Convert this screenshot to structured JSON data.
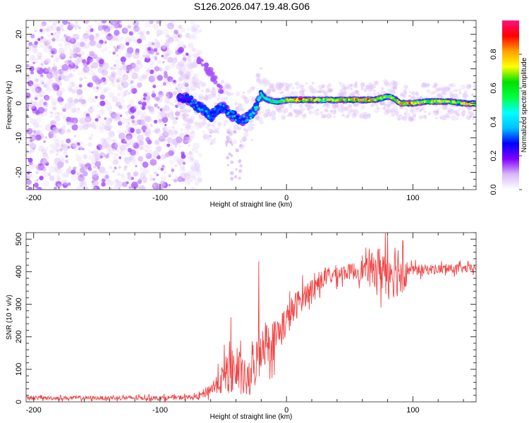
{
  "title": "S126.2026.047.19.48.G06",
  "chart_data": [
    {
      "type": "heatmap",
      "name": "spectrogram",
      "xlabel": "Height of straight line (km)",
      "ylabel": "Frequency (Hz)",
      "xlim": [
        -206,
        150
      ],
      "ylim": [
        -25,
        24
      ],
      "xticks": [
        -200,
        -100,
        0,
        100
      ],
      "xtick_labels": [
        "-200",
        "-100",
        "0",
        "100"
      ],
      "yticks": [
        -20,
        -10,
        0,
        10,
        20
      ],
      "ytick_labels": [
        "-20",
        "-10",
        "0",
        "10",
        "20"
      ],
      "colorbar": {
        "label": "Normalized spectral amplitude",
        "range": [
          0,
          1
        ],
        "ticks": [
          0.0,
          0.2,
          0.4,
          0.6,
          0.8
        ],
        "tick_labels": [
          "0.0",
          "0.2",
          "0.4",
          "0.6",
          "0.8"
        ],
        "colors": [
          "#ffffff",
          "#d8b8f8",
          "#8000ff",
          "#0000ff",
          "#00c0ff",
          "#00ffff",
          "#00ff40",
          "#00e000",
          "#ffff00",
          "#ffa000",
          "#ff0000",
          "#ff1080"
        ]
      },
      "noise_region_km": [
        -206,
        -78
      ],
      "signal_track": {
        "x": [
          -85,
          -80,
          -75,
          -70,
          -65,
          -60,
          -55,
          -50,
          -45,
          -40,
          -35,
          -30,
          -25,
          -20,
          -15,
          -10,
          -5,
          0,
          10,
          20,
          30,
          40,
          50,
          60,
          70,
          80,
          85,
          90,
          100,
          110,
          120,
          130,
          140,
          150
        ],
        "y": [
          1.5,
          1.5,
          0.5,
          -1,
          -2,
          -4,
          -2,
          -1,
          -3,
          -4,
          -5,
          -4,
          -2,
          2.5,
          1,
          0.5,
          0.5,
          1,
          1,
          1,
          1,
          1,
          1,
          1,
          1,
          2,
          1.5,
          0,
          0,
          0.5,
          0.5,
          0.5,
          0,
          0
        ],
        "amplitude": [
          0.25,
          0.3,
          0.35,
          0.35,
          0.4,
          0.4,
          0.35,
          0.35,
          0.4,
          0.4,
          0.35,
          0.45,
          0.5,
          0.6,
          0.55,
          0.6,
          0.6,
          0.75,
          0.9,
          0.85,
          0.75,
          0.85,
          0.9,
          0.9,
          0.85,
          0.7,
          0.8,
          0.95,
          0.9,
          0.7,
          0.8,
          0.75,
          0.8,
          0.9
        ]
      },
      "secondary_track": {
        "x": [
          -70,
          -65,
          -60,
          -55,
          -50
        ],
        "y": [
          13,
          11,
          9,
          6,
          3
        ]
      }
    },
    {
      "type": "line",
      "name": "snr",
      "xlabel": "Height of straight line (km)",
      "ylabel": "SNR (10 * v/v)",
      "xlim": [
        -206,
        150
      ],
      "ylim": [
        0,
        520
      ],
      "xticks": [
        -200,
        -100,
        0,
        100
      ],
      "xtick_labels": [
        "-200",
        "-100",
        "0",
        "100"
      ],
      "yticks": [
        0,
        100,
        200,
        300,
        400,
        500
      ],
      "ytick_labels": [
        "0",
        "100",
        "200",
        "300",
        "400",
        "500"
      ],
      "color": "#f03030",
      "trend": {
        "x": [
          -206,
          -100,
          -70,
          -60,
          -50,
          -45,
          -40,
          -30,
          -25,
          -20,
          -10,
          0,
          10,
          20,
          30,
          40,
          50,
          60,
          70,
          80,
          90,
          95,
          100,
          120,
          150
        ],
        "y": [
          12,
          12,
          15,
          40,
          70,
          110,
          90,
          60,
          110,
          180,
          190,
          250,
          310,
          350,
          380,
          395,
          400,
          405,
          410,
          410,
          410,
          405,
          405,
          408,
          410
        ]
      },
      "noise_amplitude": {
        "x": [
          -206,
          -70,
          -55,
          -45,
          -30,
          -20,
          -10,
          20,
          50,
          65,
          75,
          85,
          92,
          96,
          150
        ],
        "y": [
          8,
          10,
          40,
          110,
          80,
          110,
          90,
          45,
          35,
          55,
          110,
          130,
          120,
          25,
          18
        ]
      },
      "peaks": [
        {
          "x": -22,
          "y": 432
        },
        {
          "x": -44,
          "y": 260
        },
        {
          "x": 80,
          "y": 515
        },
        {
          "x": 92,
          "y": 495
        }
      ]
    }
  ]
}
